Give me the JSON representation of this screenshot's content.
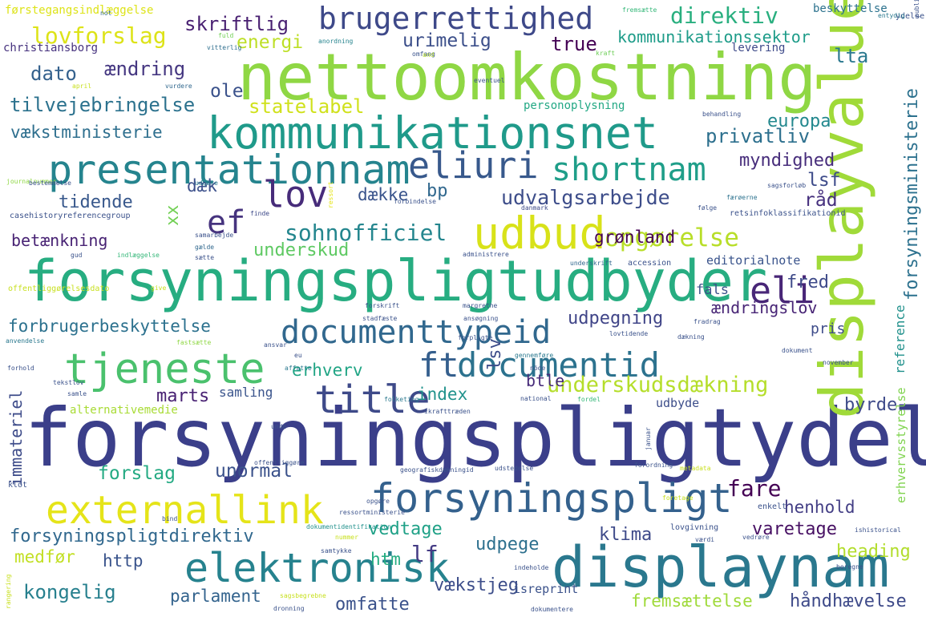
{
  "words": [
    {
      "text": "forsyningspligtydelse",
      "color": "#3b3f8a"
    },
    {
      "text": "nettoomkostning",
      "color": "#8fd744"
    },
    {
      "text": "forsyningspligtudbyder",
      "color": "#27ad81"
    },
    {
      "text": "displayvalue",
      "color": "#a0da39"
    },
    {
      "text": "displaynam",
      "color": "#2a788e"
    },
    {
      "text": "kommunikationsnet",
      "color": "#1f9a8a"
    },
    {
      "text": "presentationnam",
      "color": "#25848e"
    },
    {
      "text": "eliuri",
      "color": "#38598c"
    },
    {
      "text": "udbud",
      "color": "#d8e219"
    },
    {
      "text": "externallink",
      "color": "#e5e419"
    },
    {
      "text": "elektronisk",
      "color": "#26828e"
    },
    {
      "text": "forsyningspligt",
      "color": "#34618d"
    },
    {
      "text": "tjeneste",
      "color": "#4ac16d"
    },
    {
      "text": "documenttypeid",
      "color": "#31688e"
    },
    {
      "text": "title",
      "color": "#3e4a89"
    },
    {
      "text": "documentid",
      "color": "#2c728e"
    },
    {
      "text": "brugerrettighed",
      "color": "#3e4989"
    },
    {
      "text": "shortnam",
      "color": "#1f9e89"
    },
    {
      "text": "lov",
      "color": "#472c7a"
    },
    {
      "text": "eli",
      "color": "#482677"
    },
    {
      "text": "ef",
      "color": "#46337e"
    },
    {
      "text": "ft",
      "color": "#355f8d"
    },
    {
      "text": "lovforslag",
      "color": "#dde318"
    },
    {
      "text": "direktiv",
      "color": "#29af7f"
    },
    {
      "text": "sohnofficiel",
      "color": "#24868e"
    },
    {
      "text": "opgørelse",
      "color": "#b8de29"
    },
    {
      "text": "udvalgsarbejde",
      "color": "#3d4d8a"
    },
    {
      "text": "underskudsdækning",
      "color": "#b5de2b"
    },
    {
      "text": "forsyningsministerie",
      "color": "#2c718e"
    },
    {
      "text": "skriftlig",
      "color": "#481f71"
    },
    {
      "text": "ændring",
      "color": "#453781"
    },
    {
      "text": "dato",
      "color": "#34618d"
    },
    {
      "text": "tilvejebringelse",
      "color": "#2c728e"
    },
    {
      "text": "kommunikationssektor",
      "color": "#1e9c89"
    },
    {
      "text": "energi",
      "color": "#bddf26"
    },
    {
      "text": "urimelig",
      "color": "#3c4f8a"
    },
    {
      "text": "true",
      "color": "#440154"
    },
    {
      "text": "lta",
      "color": "#2a788e"
    },
    {
      "text": "statelabel",
      "color": "#d0e11c"
    },
    {
      "text": "ole",
      "color": "#3b528b"
    },
    {
      "text": "vækstministerie",
      "color": "#2e6f8e"
    },
    {
      "text": "europa",
      "color": "#23888e"
    },
    {
      "text": "privatliv",
      "color": "#2d708e"
    },
    {
      "text": "myndighed",
      "color": "#472d7b"
    },
    {
      "text": "lsf",
      "color": "#3e4c8a"
    },
    {
      "text": "råd",
      "color": "#46307e"
    },
    {
      "text": "tidende",
      "color": "#38588c"
    },
    {
      "text": "dæk",
      "color": "#3c508b"
    },
    {
      "text": "dække",
      "color": "#3a548c"
    },
    {
      "text": "bp",
      "color": "#31688e"
    },
    {
      "text": "xx",
      "color": "#73d056"
    },
    {
      "text": "betænkning",
      "color": "#482374"
    },
    {
      "text": "grønland",
      "color": "#440154"
    },
    {
      "text": "underskud",
      "color": "#5ec962"
    },
    {
      "text": "editorialnote",
      "color": "#3a548c"
    },
    {
      "text": "fred",
      "color": "#3e4a89"
    },
    {
      "text": "fals",
      "color": "#3b528b"
    },
    {
      "text": "ændringslov",
      "color": "#482576"
    },
    {
      "text": "udpegning",
      "color": "#404588"
    },
    {
      "text": "forbrugerbeskyttelse",
      "color": "#2c718e"
    },
    {
      "text": "pris",
      "color": "#3e4c8a"
    },
    {
      "text": "reference",
      "color": "#21918c"
    },
    {
      "text": "erhverv",
      "color": "#21a585"
    },
    {
      "text": "lsv",
      "color": "#3d4d8a"
    },
    {
      "text": "btle",
      "color": "#472c7a"
    },
    {
      "text": "index",
      "color": "#20928c"
    },
    {
      "text": "marts",
      "color": "#482173"
    },
    {
      "text": "samling",
      "color": "#3a548c"
    },
    {
      "text": "alternativemedie",
      "color": "#a8db34"
    },
    {
      "text": "immateriel",
      "color": "#3e4c8a"
    },
    {
      "text": "forslag",
      "color": "#24aa83"
    },
    {
      "text": "unormal",
      "color": "#3b528b"
    },
    {
      "text": "byrde",
      "color": "#3e4a89"
    },
    {
      "text": "udbyde",
      "color": "#3d4e8a"
    },
    {
      "text": "erhvervsstyrelse",
      "color": "#7fd34e"
    },
    {
      "text": "henhold",
      "color": "#433e85"
    },
    {
      "text": "fare",
      "color": "#440154"
    },
    {
      "text": "forsyningspligtdirektiv",
      "color": "#31688e"
    },
    {
      "text": "vedtage",
      "color": "#1fa187"
    },
    {
      "text": "udpege",
      "color": "#2d708e"
    },
    {
      "text": "klima",
      "color": "#3e4a89"
    },
    {
      "text": "varetage",
      "color": "#471063"
    },
    {
      "text": "heading",
      "color": "#b2dd2d"
    },
    {
      "text": "medfør",
      "color": "#c2df23"
    },
    {
      "text": "http",
      "color": "#3a548c"
    },
    {
      "text": "lf",
      "color": "#443b84"
    },
    {
      "text": "htm",
      "color": "#25ac82"
    },
    {
      "text": "vækstjeg",
      "color": "#3d4e8a"
    },
    {
      "text": "kongelig",
      "color": "#27808e"
    },
    {
      "text": "parlament",
      "color": "#33638d"
    },
    {
      "text": "omfatte",
      "color": "#3b528b"
    },
    {
      "text": "fremsættelse",
      "color": "#9fda3a"
    },
    {
      "text": "håndhævelse",
      "color": "#3e4a89"
    },
    {
      "text": "isreprint",
      "color": "#3b528b"
    },
    {
      "text": "førstegangsindlæggelse",
      "color": "#dde318"
    },
    {
      "text": "christiansborg",
      "color": "#46327e"
    },
    {
      "text": "not",
      "color": "#31688e"
    },
    {
      "text": "fuld",
      "color": "#73d056"
    },
    {
      "text": "vitterlig",
      "color": "#2e6e8e"
    },
    {
      "text": "anordning",
      "color": "#25848e"
    },
    {
      "text": "omfang",
      "color": "#3a548c"
    },
    {
      "text": "and",
      "color": "#b8de29"
    },
    {
      "text": "kraft",
      "color": "#6ece58"
    },
    {
      "text": "fremsætte",
      "color": "#35b779"
    },
    {
      "text": "beskyttelse",
      "color": "#2c728e"
    },
    {
      "text": "ydelse",
      "color": "#3b528b"
    },
    {
      "text": "entydig",
      "color": "#2a788e"
    },
    {
      "text": "levering",
      "color": "#3e4a89"
    },
    {
      "text": "april",
      "color": "#c8e020"
    },
    {
      "text": "vurdere",
      "color": "#31688e"
    },
    {
      "text": "eventuel",
      "color": "#3b528b"
    },
    {
      "text": "personoplysning",
      "color": "#22a884"
    },
    {
      "text": "behandling",
      "color": "#3b528b"
    },
    {
      "text": "journalnummer",
      "color": "#8fd744"
    },
    {
      "text": "bestemmelse",
      "color": "#3b528b"
    },
    {
      "text": "udgøre",
      "color": "#2a788e"
    },
    {
      "text": "ressort",
      "color": "#e5e419"
    },
    {
      "text": "sagsforløb",
      "color": "#3b528b"
    },
    {
      "text": "færøerne",
      "color": "#2c728e"
    },
    {
      "text": "casehistoryreferencegroup",
      "color": "#3b528b"
    },
    {
      "text": "finde",
      "color": "#3e4a89"
    },
    {
      "text": "forbindelse",
      "color": "#3b528b"
    },
    {
      "text": "danmark",
      "color": "#3e4a89"
    },
    {
      "text": "følge",
      "color": "#3b528b"
    },
    {
      "text": "retsinfoklassifikationid",
      "color": "#3b528b"
    },
    {
      "text": "samarbejde",
      "color": "#3b528b"
    },
    {
      "text": "gælde",
      "color": "#31688e"
    },
    {
      "text": "gud",
      "color": "#3b528b"
    },
    {
      "text": "indlæggelse",
      "color": "#35b779"
    },
    {
      "text": "sætte",
      "color": "#3b528b"
    },
    {
      "text": "administrere",
      "color": "#3b528b"
    },
    {
      "text": "underskrift",
      "color": "#31688e"
    },
    {
      "text": "accession",
      "color": "#3b528b"
    },
    {
      "text": "give",
      "color": "#c8e020"
    },
    {
      "text": "offentliggørelsesdato",
      "color": "#c8e020"
    },
    {
      "text": "forskrift",
      "color": "#3b528b"
    },
    {
      "text": "margrethe",
      "color": "#3b528b"
    },
    {
      "text": "stadfæste",
      "color": "#3b528b"
    },
    {
      "text": "ansøgning",
      "color": "#3b528b"
    },
    {
      "text": "fradrag",
      "color": "#3b528b"
    },
    {
      "text": "anvendelse",
      "color": "#2a788e"
    },
    {
      "text": "fastsætte",
      "color": "#8fd744"
    },
    {
      "text": "ansvar",
      "color": "#3b528b"
    },
    {
      "text": "forpligte",
      "color": "#3b528b"
    },
    {
      "text": "lovtidende",
      "color": "#3b528b"
    },
    {
      "text": "dækning",
      "color": "#3b528b"
    },
    {
      "text": "forhold",
      "color": "#3b528b"
    },
    {
      "text": "affatte",
      "color": "#2a788e"
    },
    {
      "text": "eu",
      "color": "#3b528b"
    },
    {
      "text": "dokument",
      "color": "#3b528b"
    },
    {
      "text": "november",
      "color": "#3b528b"
    },
    {
      "text": "tekstlov",
      "color": "#3b528b"
    },
    {
      "text": "gennemføre",
      "color": "#2a788e"
    },
    {
      "text": "nöde",
      "color": "#3b528b"
    },
    {
      "text": "samle",
      "color": "#3b528b"
    },
    {
      "text": "unde",
      "color": "#3b528b"
    },
    {
      "text": "folketing",
      "color": "#2a788e"
    },
    {
      "text": "national",
      "color": "#3b528b"
    },
    {
      "text": "fordel",
      "color": "#35b779"
    },
    {
      "text": "ikrafttræden",
      "color": "#3b528b"
    },
    {
      "text": "januar",
      "color": "#3b528b"
    },
    {
      "text": "offentliggøre",
      "color": "#3b528b"
    },
    {
      "text": "klot",
      "color": "#3b528b"
    },
    {
      "text": "geografiskdækningid",
      "color": "#3b528b"
    },
    {
      "text": "udstedelse",
      "color": "#3b528b"
    },
    {
      "text": "forordning",
      "color": "#3b528b"
    },
    {
      "text": "metadata",
      "color": "#c8e020"
    },
    {
      "text": "opgøre",
      "color": "#3b528b"
    },
    {
      "text": "ressortministerie",
      "color": "#3b528b"
    },
    {
      "text": "foretage",
      "color": "#c8e020"
    },
    {
      "text": "enkelt",
      "color": "#3b528b"
    },
    {
      "text": "dokumentidentifikation",
      "color": "#21918c"
    },
    {
      "text": "lovgivning",
      "color": "#3b528b"
    },
    {
      "text": "ishistorical",
      "color": "#3b528b"
    },
    {
      "text": "nummer",
      "color": "#c8e020"
    },
    {
      "text": "værdi",
      "color": "#3b528b"
    },
    {
      "text": "vedrøre",
      "color": "#3b528b"
    },
    {
      "text": "samtykke",
      "color": "#3b528b"
    },
    {
      "text": "indeholde",
      "color": "#3b528b"
    },
    {
      "text": "beregne",
      "color": "#3b528b"
    },
    {
      "text": "sagsbegrebne",
      "color": "#c8e020"
    },
    {
      "text": "rangering",
      "color": "#c8e020"
    },
    {
      "text": "dronning",
      "color": "#3b528b"
    },
    {
      "text": "dokumentere",
      "color": "#3b528b"
    },
    {
      "text": "publiceringsmedie",
      "color": "#3b528b"
    },
    {
      "text": "bind",
      "color": "#3b528b"
    },
    {
      "text": "gå",
      "color": "#3b528b"
    }
  ]
}
